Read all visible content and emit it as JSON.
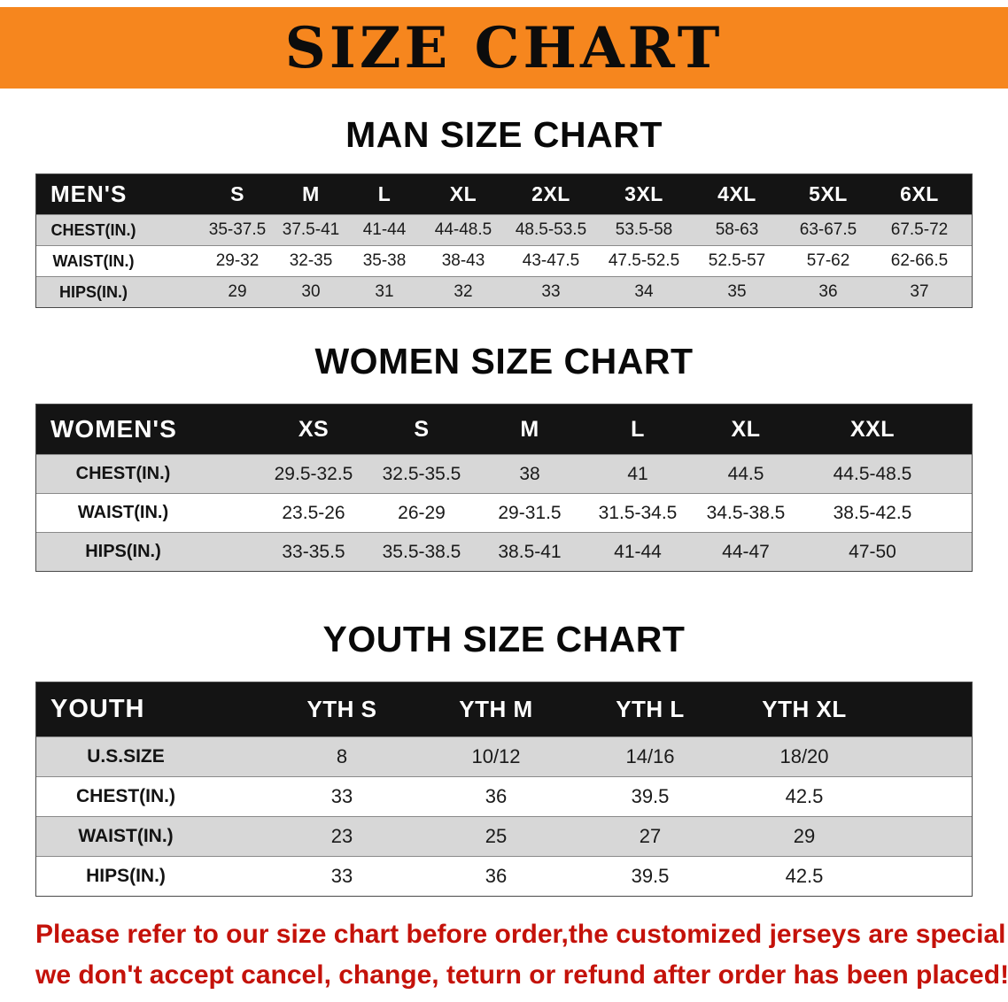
{
  "banner": {
    "title": "SIZE CHART"
  },
  "colors": {
    "banner_orange": "#f6861e",
    "table_header_black": "#141414",
    "row_shade_gray": "#d7d7d7",
    "disclaimer_red": "#c4120a"
  },
  "sections": {
    "men": {
      "heading": "MAN SIZE CHART",
      "table": {
        "corner": "MEN'S",
        "sizes": [
          "S",
          "M",
          "L",
          "XL",
          "2XL",
          "3XL",
          "4XL",
          "5XL",
          "6XL"
        ],
        "rows": [
          {
            "label": "CHEST(IN.)",
            "values": [
              "35-37.5",
              "37.5-41",
              "41-44",
              "44-48.5",
              "48.5-53.5",
              "53.5-58",
              "58-63",
              "63-67.5",
              "67.5-72"
            ]
          },
          {
            "label": "WAIST(IN.)",
            "values": [
              "29-32",
              "32-35",
              "35-38",
              "38-43",
              "43-47.5",
              "47.5-52.5",
              "52.5-57",
              "57-62",
              "62-66.5"
            ]
          },
          {
            "label": "HIPS(IN.)",
            "values": [
              "29",
              "30",
              "31",
              "32",
              "33",
              "34",
              "35",
              "36",
              "37"
            ]
          }
        ]
      }
    },
    "women": {
      "heading": "WOMEN SIZE CHART",
      "table": {
        "corner": "WOMEN'S",
        "sizes": [
          "XS",
          "S",
          "M",
          "L",
          "XL",
          "XXL"
        ],
        "rows": [
          {
            "label": "CHEST(IN.)",
            "values": [
              "29.5-32.5",
              "32.5-35.5",
              "38",
              "41",
              "44.5",
              "44.5-48.5"
            ]
          },
          {
            "label": "WAIST(IN.)",
            "values": [
              "23.5-26",
              "26-29",
              "29-31.5",
              "31.5-34.5",
              "34.5-38.5",
              "38.5-42.5"
            ]
          },
          {
            "label": "HIPS(IN.)",
            "values": [
              "33-35.5",
              "35.5-38.5",
              "38.5-41",
              "41-44",
              "44-47",
              "47-50"
            ]
          }
        ]
      }
    },
    "youth": {
      "heading": "YOUTH SIZE CHART",
      "table": {
        "corner": "YOUTH",
        "sizes": [
          "YTH S",
          "YTH M",
          "YTH L",
          "YTH XL"
        ],
        "rows": [
          {
            "label": "U.S.SIZE",
            "values": [
              "8",
              "10/12",
              "14/16",
              "18/20"
            ]
          },
          {
            "label": "CHEST(IN.)",
            "values": [
              "33",
              "36",
              "39.5",
              "42.5"
            ]
          },
          {
            "label": "WAIST(IN.)",
            "values": [
              "23",
              "25",
              "27",
              "29"
            ]
          },
          {
            "label": "HIPS(IN.)",
            "values": [
              "33",
              "36",
              "39.5",
              "42.5"
            ]
          }
        ]
      }
    }
  },
  "disclaimer": {
    "line1": "Please refer to our size chart before order,the customized jerseys are special products,",
    "line2": "we don't accept cancel, change, teturn or refund after order has been placed!"
  }
}
